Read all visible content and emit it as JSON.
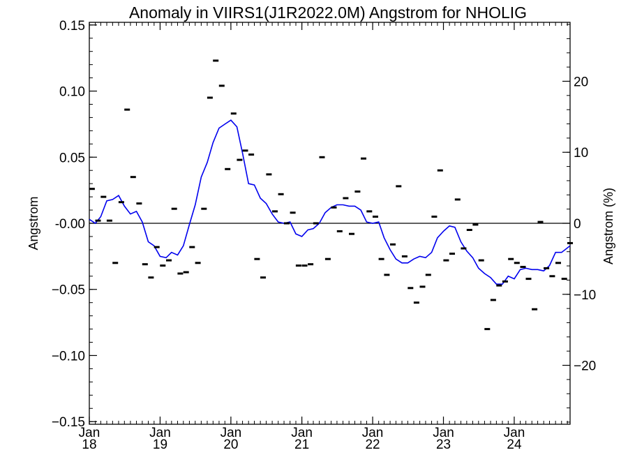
{
  "chart_data": {
    "type": "line",
    "title": "Anomaly in VIIRS1(J1R2022.0M) Angstrom for NHOLIG",
    "ylabel": "Angstrom",
    "y2label": "Angstrom (%)",
    "ylim": [
      -0.152,
      0.152
    ],
    "y2lim": [
      -28.3,
      28.3
    ],
    "xlim": [
      "2018-01-01",
      "2024-10-15"
    ],
    "grid": false,
    "yticks": [
      {
        "value": 0.15,
        "label": "0.15"
      },
      {
        "value": 0.1,
        "label": "0.10"
      },
      {
        "value": 0.05,
        "label": "0.05"
      },
      {
        "value": 0.0,
        "label": "-0.00"
      },
      {
        "value": -0.05,
        "label": "−0.05"
      },
      {
        "value": -0.1,
        "label": "−0.10"
      },
      {
        "value": -0.15,
        "label": "−0.15"
      }
    ],
    "y2ticks": [
      {
        "value": 20,
        "label": "20"
      },
      {
        "value": 10,
        "label": "10"
      },
      {
        "value": 0,
        "label": "0"
      },
      {
        "value": -10,
        "label": "−10"
      },
      {
        "value": -20,
        "label": "−20"
      }
    ],
    "xticks": [
      {
        "value": "2018-01-01",
        "line1": "Jan",
        "line2": "18"
      },
      {
        "value": "2019-01-01",
        "line1": "Jan",
        "line2": "19"
      },
      {
        "value": "2020-01-01",
        "line1": "Jan",
        "line2": "20"
      },
      {
        "value": "2021-01-01",
        "line1": "Jan",
        "line2": "21"
      },
      {
        "value": "2022-01-01",
        "line1": "Jan",
        "line2": "22"
      },
      {
        "value": "2023-01-01",
        "line1": "Jan",
        "line2": "23"
      },
      {
        "value": "2024-01-01",
        "line1": "Jan",
        "line2": "24"
      }
    ],
    "monthly": {
      "style": "short horizontal black dashes",
      "points": [
        {
          "x": "2018-01",
          "y": 0.026
        },
        {
          "x": "2018-02",
          "y": 0.002
        },
        {
          "x": "2018-03",
          "y": 0.02
        },
        {
          "x": "2018-04",
          "y": 0.002
        },
        {
          "x": "2018-05",
          "y": -0.03
        },
        {
          "x": "2018-06",
          "y": 0.016
        },
        {
          "x": "2018-07",
          "y": 0.086
        },
        {
          "x": "2018-08",
          "y": 0.035
        },
        {
          "x": "2018-09",
          "y": 0.015
        },
        {
          "x": "2018-10",
          "y": -0.031
        },
        {
          "x": "2018-11",
          "y": -0.041
        },
        {
          "x": "2018-12",
          "y": -0.018
        },
        {
          "x": "2019-01",
          "y": -0.032
        },
        {
          "x": "2019-02",
          "y": -0.028
        },
        {
          "x": "2019-03",
          "y": 0.011
        },
        {
          "x": "2019-04",
          "y": -0.038
        },
        {
          "x": "2019-05",
          "y": -0.037
        },
        {
          "x": "2019-06",
          "y": -0.018
        },
        {
          "x": "2019-07",
          "y": -0.03
        },
        {
          "x": "2019-08",
          "y": 0.011
        },
        {
          "x": "2019-09",
          "y": 0.095
        },
        {
          "x": "2019-10",
          "y": 0.123
        },
        {
          "x": "2019-11",
          "y": 0.104
        },
        {
          "x": "2019-12",
          "y": 0.041
        },
        {
          "x": "2020-01",
          "y": 0.083
        },
        {
          "x": "2020-02",
          "y": 0.048
        },
        {
          "x": "2020-03",
          "y": 0.055
        },
        {
          "x": "2020-04",
          "y": 0.052
        },
        {
          "x": "2020-05",
          "y": -0.027
        },
        {
          "x": "2020-06",
          "y": -0.041
        },
        {
          "x": "2020-07",
          "y": 0.037
        },
        {
          "x": "2020-08",
          "y": 0.009
        },
        {
          "x": "2020-09",
          "y": 0.022
        },
        {
          "x": "2020-10",
          "y": 0.0
        },
        {
          "x": "2020-11",
          "y": 0.008
        },
        {
          "x": "2020-12",
          "y": -0.032
        },
        {
          "x": "2021-01",
          "y": -0.032
        },
        {
          "x": "2021-02",
          "y": -0.031
        },
        {
          "x": "2021-03",
          "y": 0.0
        },
        {
          "x": "2021-04",
          "y": 0.05
        },
        {
          "x": "2021-05",
          "y": -0.027
        },
        {
          "x": "2021-06",
          "y": 0.012
        },
        {
          "x": "2021-07",
          "y": -0.006
        },
        {
          "x": "2021-08",
          "y": 0.019
        },
        {
          "x": "2021-09",
          "y": -0.008
        },
        {
          "x": "2021-10",
          "y": 0.024
        },
        {
          "x": "2021-11",
          "y": 0.049
        },
        {
          "x": "2021-12",
          "y": 0.009
        },
        {
          "x": "2022-01",
          "y": 0.005
        },
        {
          "x": "2022-02",
          "y": -0.027
        },
        {
          "x": "2022-03",
          "y": -0.039
        },
        {
          "x": "2022-04",
          "y": -0.016
        },
        {
          "x": "2022-05",
          "y": 0.028
        },
        {
          "x": "2022-06",
          "y": -0.025
        },
        {
          "x": "2022-07",
          "y": -0.049
        },
        {
          "x": "2022-08",
          "y": -0.06
        },
        {
          "x": "2022-09",
          "y": -0.048
        },
        {
          "x": "2022-10",
          "y": -0.039
        },
        {
          "x": "2022-11",
          "y": 0.005
        },
        {
          "x": "2022-12",
          "y": 0.04
        },
        {
          "x": "2023-01",
          "y": -0.028
        },
        {
          "x": "2023-02",
          "y": -0.023
        },
        {
          "x": "2023-03",
          "y": 0.018
        },
        {
          "x": "2023-04",
          "y": -0.019
        },
        {
          "x": "2023-05",
          "y": -0.005
        },
        {
          "x": "2023-06",
          "y": -0.001
        },
        {
          "x": "2023-07",
          "y": -0.028
        },
        {
          "x": "2023-08",
          "y": -0.08
        },
        {
          "x": "2023-09",
          "y": -0.058
        },
        {
          "x": "2023-10",
          "y": -0.047
        },
        {
          "x": "2023-11",
          "y": -0.044
        },
        {
          "x": "2023-12",
          "y": -0.027
        },
        {
          "x": "2024-01",
          "y": -0.03
        },
        {
          "x": "2024-02",
          "y": -0.033
        },
        {
          "x": "2024-03",
          "y": -0.042
        },
        {
          "x": "2024-04",
          "y": -0.065
        },
        {
          "x": "2024-05",
          "y": 0.001
        },
        {
          "x": "2024-06",
          "y": -0.034
        },
        {
          "x": "2024-07",
          "y": -0.04
        },
        {
          "x": "2024-08",
          "y": -0.03
        },
        {
          "x": "2024-09",
          "y": -0.042
        },
        {
          "x": "2024-10",
          "y": -0.015
        }
      ]
    },
    "smoothed": {
      "color": "#0000ee",
      "points": [
        {
          "x": "2018-01-01",
          "y": 0.003
        },
        {
          "x": "2018-02-01",
          "y": 0.0
        },
        {
          "x": "2018-03-01",
          "y": 0.005
        },
        {
          "x": "2018-04-01",
          "y": 0.017
        },
        {
          "x": "2018-05-01",
          "y": 0.018
        },
        {
          "x": "2018-06-01",
          "y": 0.021
        },
        {
          "x": "2018-07-01",
          "y": 0.013
        },
        {
          "x": "2018-08-01",
          "y": 0.007
        },
        {
          "x": "2018-09-01",
          "y": 0.009
        },
        {
          "x": "2018-10-01",
          "y": 0.001
        },
        {
          "x": "2018-11-01",
          "y": -0.014
        },
        {
          "x": "2018-12-01",
          "y": -0.017
        },
        {
          "x": "2019-01-01",
          "y": -0.025
        },
        {
          "x": "2019-02-01",
          "y": -0.026
        },
        {
          "x": "2019-03-01",
          "y": -0.022
        },
        {
          "x": "2019-04-01",
          "y": -0.024
        },
        {
          "x": "2019-05-01",
          "y": -0.017
        },
        {
          "x": "2019-06-01",
          "y": -0.001
        },
        {
          "x": "2019-07-01",
          "y": 0.014
        },
        {
          "x": "2019-08-01",
          "y": 0.035
        },
        {
          "x": "2019-09-01",
          "y": 0.046
        },
        {
          "x": "2019-10-01",
          "y": 0.061
        },
        {
          "x": "2019-11-01",
          "y": 0.072
        },
        {
          "x": "2019-12-01",
          "y": 0.075
        },
        {
          "x": "2020-01-01",
          "y": 0.078
        },
        {
          "x": "2020-02-01",
          "y": 0.073
        },
        {
          "x": "2020-03-01",
          "y": 0.053
        },
        {
          "x": "2020-04-01",
          "y": 0.03
        },
        {
          "x": "2020-05-01",
          "y": 0.029
        },
        {
          "x": "2020-06-01",
          "y": 0.019
        },
        {
          "x": "2020-07-01",
          "y": 0.015
        },
        {
          "x": "2020-08-01",
          "y": 0.007
        },
        {
          "x": "2020-09-01",
          "y": 0.001
        },
        {
          "x": "2020-10-01",
          "y": 0.0
        },
        {
          "x": "2020-11-01",
          "y": 0.001
        },
        {
          "x": "2020-12-01",
          "y": -0.008
        },
        {
          "x": "2021-01-01",
          "y": -0.01
        },
        {
          "x": "2021-02-01",
          "y": -0.005
        },
        {
          "x": "2021-03-01",
          "y": -0.004
        },
        {
          "x": "2021-04-01",
          "y": 0.0
        },
        {
          "x": "2021-05-01",
          "y": 0.008
        },
        {
          "x": "2021-06-01",
          "y": 0.012
        },
        {
          "x": "2021-07-01",
          "y": 0.014
        },
        {
          "x": "2021-08-01",
          "y": 0.014
        },
        {
          "x": "2021-09-01",
          "y": 0.013
        },
        {
          "x": "2021-10-01",
          "y": 0.013
        },
        {
          "x": "2021-11-01",
          "y": 0.01
        },
        {
          "x": "2021-12-01",
          "y": 0.001
        },
        {
          "x": "2022-01-01",
          "y": 0.0
        },
        {
          "x": "2022-02-01",
          "y": 0.001
        },
        {
          "x": "2022-03-01",
          "y": -0.011
        },
        {
          "x": "2022-04-01",
          "y": -0.02
        },
        {
          "x": "2022-05-01",
          "y": -0.027
        },
        {
          "x": "2022-06-01",
          "y": -0.03
        },
        {
          "x": "2022-07-01",
          "y": -0.03
        },
        {
          "x": "2022-08-01",
          "y": -0.027
        },
        {
          "x": "2022-09-01",
          "y": -0.025
        },
        {
          "x": "2022-10-01",
          "y": -0.026
        },
        {
          "x": "2022-11-01",
          "y": -0.022
        },
        {
          "x": "2022-12-01",
          "y": -0.011
        },
        {
          "x": "2023-01-01",
          "y": -0.006
        },
        {
          "x": "2023-02-01",
          "y": -0.002
        },
        {
          "x": "2023-03-01",
          "y": -0.003
        },
        {
          "x": "2023-04-01",
          "y": -0.014
        },
        {
          "x": "2023-05-01",
          "y": -0.021
        },
        {
          "x": "2023-06-01",
          "y": -0.026
        },
        {
          "x": "2023-07-01",
          "y": -0.034
        },
        {
          "x": "2023-08-01",
          "y": -0.038
        },
        {
          "x": "2023-09-01",
          "y": -0.041
        },
        {
          "x": "2023-10-01",
          "y": -0.046
        },
        {
          "x": "2023-11-01",
          "y": -0.046
        },
        {
          "x": "2023-12-01",
          "y": -0.04
        },
        {
          "x": "2024-01-01",
          "y": -0.042
        },
        {
          "x": "2024-02-01",
          "y": -0.035
        },
        {
          "x": "2024-03-01",
          "y": -0.034
        },
        {
          "x": "2024-04-01",
          "y": -0.035
        },
        {
          "x": "2024-05-01",
          "y": -0.035
        },
        {
          "x": "2024-06-01",
          "y": -0.036
        },
        {
          "x": "2024-07-01",
          "y": -0.032
        },
        {
          "x": "2024-08-01",
          "y": -0.022
        },
        {
          "x": "2024-09-01",
          "y": -0.022
        },
        {
          "x": "2024-10-15",
          "y": -0.017
        }
      ]
    },
    "zero_line": {
      "value": 0.0,
      "color": "#000000"
    }
  }
}
